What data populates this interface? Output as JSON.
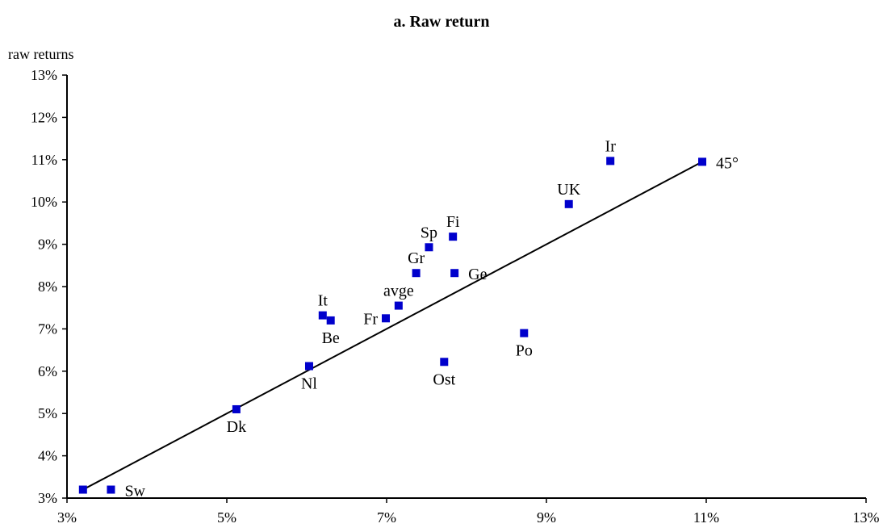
{
  "chart_data": {
    "type": "scatter",
    "title": "a. Raw return",
    "ylabel": "raw returns",
    "xlabel": "",
    "xlim": [
      3,
      13
    ],
    "ylim": [
      3,
      13
    ],
    "x_ticks": [
      "3%",
      "5%",
      "7%",
      "9%",
      "11%",
      "13%"
    ],
    "y_ticks": [
      "3%",
      "4%",
      "5%",
      "6%",
      "7%",
      "8%",
      "9%",
      "10%",
      "11%",
      "12%",
      "13%"
    ],
    "grid": false,
    "marker_color": "#0000cc",
    "line_color": "#000000",
    "reference_line": {
      "label": "45°",
      "from": [
        3.2,
        3.2
      ],
      "to": [
        10.95,
        10.95
      ]
    },
    "points": [
      {
        "label": "Sw",
        "x": 3.55,
        "y": 3.2,
        "label_pos": "right"
      },
      {
        "label": "Dk",
        "x": 5.12,
        "y": 5.1,
        "label_pos": "below"
      },
      {
        "label": "Nl",
        "x": 6.03,
        "y": 6.12,
        "label_pos": "below"
      },
      {
        "label": "It",
        "x": 6.2,
        "y": 7.32,
        "label_pos": "above"
      },
      {
        "label": "Be",
        "x": 6.3,
        "y": 7.2,
        "label_pos": "below"
      },
      {
        "label": "Fr",
        "x": 6.99,
        "y": 7.25,
        "label_pos": "left"
      },
      {
        "label": "avge",
        "x": 7.15,
        "y": 7.55,
        "label_pos": "above"
      },
      {
        "label": "Gr",
        "x": 7.37,
        "y": 8.32,
        "label_pos": "above"
      },
      {
        "label": "Sp",
        "x": 7.53,
        "y": 8.93,
        "label_pos": "above"
      },
      {
        "label": "Fi",
        "x": 7.83,
        "y": 9.18,
        "label_pos": "above"
      },
      {
        "label": "Ge",
        "x": 7.85,
        "y": 8.32,
        "label_pos": "right"
      },
      {
        "label": "Ost",
        "x": 7.72,
        "y": 6.22,
        "label_pos": "below"
      },
      {
        "label": "Po",
        "x": 8.72,
        "y": 6.9,
        "label_pos": "below"
      },
      {
        "label": "UK",
        "x": 9.28,
        "y": 9.95,
        "label_pos": "above"
      },
      {
        "label": "Ir",
        "x": 9.8,
        "y": 10.97,
        "label_pos": "above"
      }
    ]
  }
}
